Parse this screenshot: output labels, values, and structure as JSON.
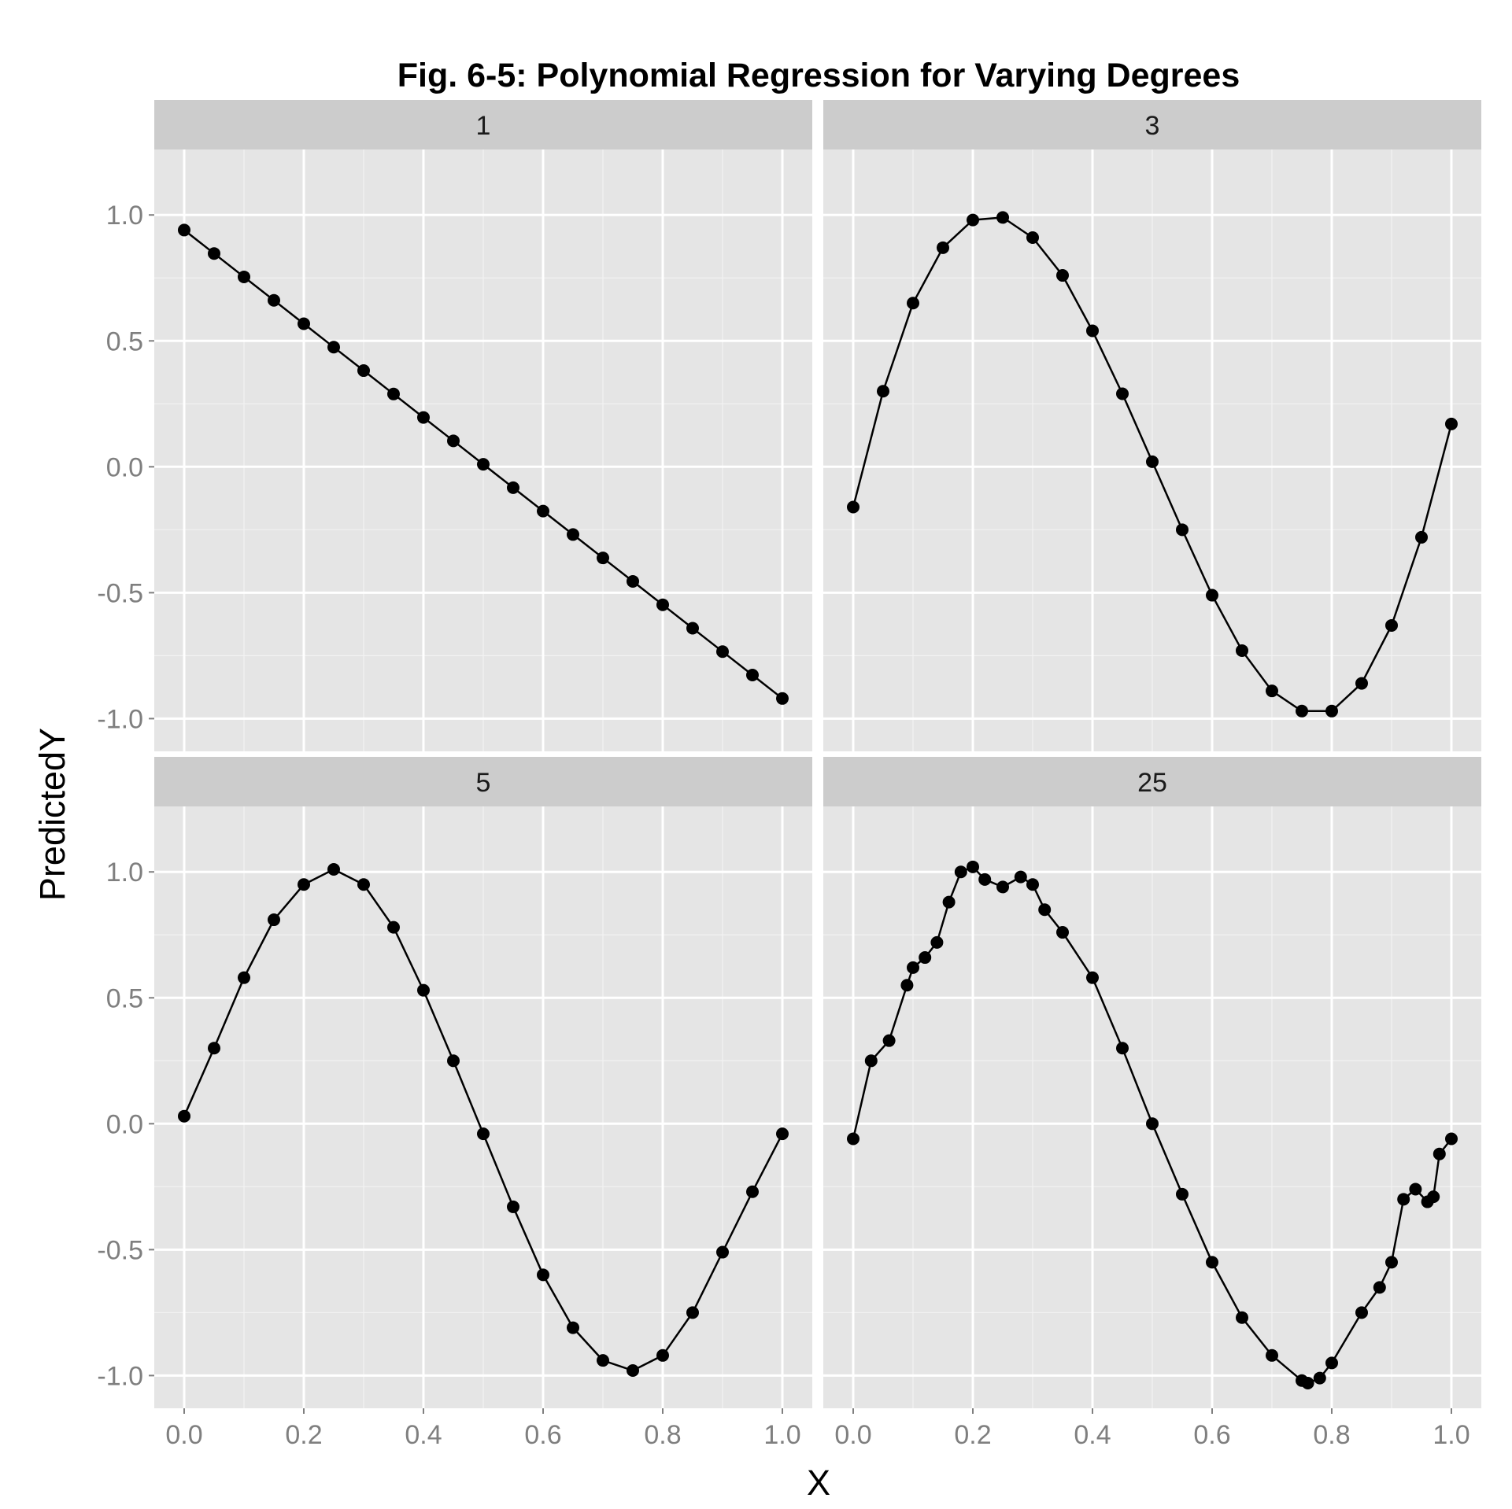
{
  "chart_data": {
    "type": "line",
    "title": "Fig. 6-5: Polynomial Regression for Varying Degrees",
    "xlabel": "X",
    "ylabel": "PredictedY",
    "xlim": [
      -0.05,
      1.05
    ],
    "ylim": [
      -1.13,
      1.26
    ],
    "x_ticks": [
      0,
      0.2,
      0.4,
      0.6,
      0.8,
      1
    ],
    "x_tick_labels": [
      "0.0",
      "0.2",
      "0.4",
      "0.6",
      "0.8",
      "1.0"
    ],
    "y_ticks": [
      -1,
      -0.5,
      0,
      0.5,
      1
    ],
    "y_tick_labels": [
      "-1.0",
      "-0.5",
      "0.0",
      "0.5",
      "1.0"
    ],
    "grid": true,
    "layout": "2x2 facets",
    "marker": "filled circle with connecting line",
    "series_color": "#000000",
    "panel_background": "#e5e5e5",
    "strip_background": "#cccccc",
    "panels": [
      {
        "strip": "1",
        "x": [
          0,
          0.05,
          0.1,
          0.15,
          0.2,
          0.25,
          0.3,
          0.35,
          0.4,
          0.45,
          0.5,
          0.55,
          0.6,
          0.65,
          0.7,
          0.75,
          0.8,
          0.85,
          0.9,
          0.95,
          1
        ],
        "y": [
          0.94,
          0.847,
          0.754,
          0.661,
          0.568,
          0.475,
          0.382,
          0.289,
          0.196,
          0.103,
          0.01,
          -0.083,
          -0.176,
          -0.269,
          -0.362,
          -0.455,
          -0.548,
          -0.641,
          -0.734,
          -0.827,
          -0.92
        ]
      },
      {
        "strip": "3",
        "x": [
          0,
          0.05,
          0.1,
          0.15,
          0.2,
          0.25,
          0.3,
          0.35,
          0.4,
          0.45,
          0.5,
          0.55,
          0.6,
          0.65,
          0.7,
          0.75,
          0.8,
          0.85,
          0.9,
          0.95,
          1
        ],
        "y": [
          -0.16,
          0.3,
          0.65,
          0.87,
          0.98,
          0.99,
          0.91,
          0.76,
          0.54,
          0.29,
          0.02,
          -0.25,
          -0.51,
          -0.73,
          -0.89,
          -0.97,
          -0.97,
          -0.86,
          -0.63,
          -0.28,
          0.17
        ]
      },
      {
        "strip": "5",
        "x": [
          0,
          0.05,
          0.1,
          0.15,
          0.2,
          0.25,
          0.3,
          0.35,
          0.4,
          0.45,
          0.5,
          0.55,
          0.6,
          0.65,
          0.7,
          0.75,
          0.8,
          0.85,
          0.9,
          0.95,
          1
        ],
        "y": [
          0.03,
          0.3,
          0.58,
          0.81,
          0.95,
          1.01,
          0.95,
          0.78,
          0.53,
          0.25,
          -0.04,
          -0.33,
          -0.6,
          -0.81,
          -0.94,
          -0.98,
          -0.92,
          -0.75,
          -0.51,
          -0.27,
          -0.04
        ]
      },
      {
        "strip": "25",
        "x": [
          0,
          0.03,
          0.06,
          0.09,
          0.1,
          0.12,
          0.14,
          0.16,
          0.18,
          0.2,
          0.22,
          0.25,
          0.28,
          0.3,
          0.32,
          0.35,
          0.4,
          0.45,
          0.5,
          0.55,
          0.6,
          0.65,
          0.7,
          0.75,
          0.76,
          0.78,
          0.8,
          0.85,
          0.88,
          0.9,
          0.92,
          0.94,
          0.96,
          0.97,
          0.98,
          1
        ],
        "y": [
          -0.06,
          0.25,
          0.33,
          0.55,
          0.62,
          0.66,
          0.72,
          0.88,
          1.0,
          1.02,
          0.97,
          0.94,
          0.98,
          0.95,
          0.85,
          0.76,
          0.58,
          0.3,
          0.0,
          -0.28,
          -0.55,
          -0.77,
          -0.92,
          -1.02,
          -1.03,
          -1.01,
          -0.95,
          -0.75,
          -0.65,
          -0.55,
          -0.3,
          -0.26,
          -0.31,
          -0.29,
          -0.12,
          -0.06
        ]
      }
    ]
  }
}
